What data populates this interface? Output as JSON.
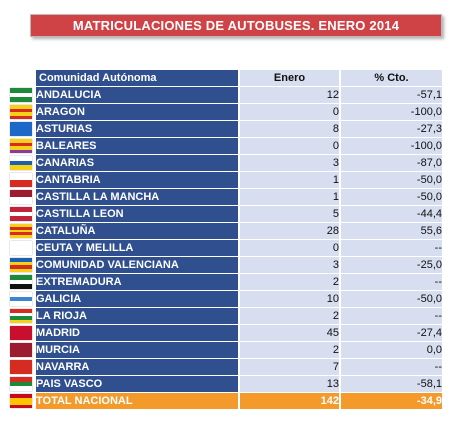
{
  "title": "MATRICULACIONES DE AUTOBUSES. ENERO 2014",
  "header": {
    "region": "Comunidad Autónoma",
    "count": "Enero",
    "change": "% Cto."
  },
  "rows": [
    {
      "name": "ANDALUCIA",
      "count": "12",
      "change": "-57,1",
      "flag": {
        "icon": "andalucia-flag-icon",
        "colors": [
          "#1d8a3a",
          "#ffffff",
          "#1d8a3a"
        ]
      }
    },
    {
      "name": "ARAGON",
      "count": "0",
      "change": "-100,0",
      "flag": {
        "icon": "aragon-flag-icon",
        "colors": [
          "#f7d117",
          "#d62b20",
          "#f7d117",
          "#d62b20"
        ]
      }
    },
    {
      "name": "ASTURIAS",
      "count": "8",
      "change": "-27,3",
      "flag": {
        "icon": "asturias-flag-icon",
        "colors": [
          "#1c68c8"
        ]
      }
    },
    {
      "name": "BALEARES",
      "count": "0",
      "change": "-100,0",
      "flag": {
        "icon": "baleares-flag-icon",
        "colors": [
          "#f7d117",
          "#d62b20",
          "#f7d117",
          "#8a3a9a"
        ]
      }
    },
    {
      "name": "CANARIAS",
      "count": "3",
      "change": "-87,0",
      "flag": {
        "icon": "canarias-flag-icon",
        "colors": [
          "#ffffff",
          "#1c5fb0",
          "#f7d117"
        ]
      }
    },
    {
      "name": "CANTABRIA",
      "count": "1",
      "change": "-50,0",
      "flag": {
        "icon": "cantabria-flag-icon",
        "colors": [
          "#ffffff",
          "#d62b20"
        ]
      }
    },
    {
      "name": "CASTILLA LA MANCHA",
      "count": "1",
      "change": "-50,0",
      "flag": {
        "icon": "castilla-la-mancha-flag-icon",
        "colors": [
          "#9b1c2e",
          "#ffffff"
        ]
      }
    },
    {
      "name": "CASTILLA LEON",
      "count": "5",
      "change": "-44,4",
      "flag": {
        "icon": "castilla-leon-flag-icon",
        "colors": [
          "#c0243a",
          "#ffffff",
          "#c0243a"
        ]
      }
    },
    {
      "name": "CATALUÑA",
      "count": "28",
      "change": "55,6",
      "flag": {
        "icon": "cataluna-flag-icon",
        "colors": [
          "#f7d117",
          "#d62b20",
          "#f7d117",
          "#d62b20",
          "#f7d117"
        ]
      }
    },
    {
      "name": "CEUTA Y MELILLA",
      "count": "0",
      "change": "--",
      "flag": {
        "icon": "ceuta-melilla-flag-icon",
        "colors": [
          "#ffffff"
        ]
      }
    },
    {
      "name": "COMUNIDAD VALENCIANA",
      "count": "3",
      "change": "-25,0",
      "flag": {
        "icon": "valencia-flag-icon",
        "colors": [
          "#1c5fb0",
          "#f7d117",
          "#d62b20",
          "#f7d117"
        ]
      }
    },
    {
      "name": "EXTREMADURA",
      "count": "2",
      "change": "--",
      "flag": {
        "icon": "extremadura-flag-icon",
        "colors": [
          "#1d8a3a",
          "#ffffff",
          "#111111"
        ]
      }
    },
    {
      "name": "GALICIA",
      "count": "10",
      "change": "-50,0",
      "flag": {
        "icon": "galicia-flag-icon",
        "colors": [
          "#ffffff",
          "#3a86d0",
          "#ffffff"
        ]
      }
    },
    {
      "name": "LA RIOJA",
      "count": "2",
      "change": "--",
      "flag": {
        "icon": "la-rioja-flag-icon",
        "colors": [
          "#d62b20",
          "#ffffff",
          "#1d8a3a",
          "#f7d117"
        ]
      }
    },
    {
      "name": "MADRID",
      "count": "45",
      "change": "-27,4",
      "flag": {
        "icon": "madrid-flag-icon",
        "colors": [
          "#c8102e"
        ]
      }
    },
    {
      "name": "MURCIA",
      "count": "2",
      "change": "0,0",
      "flag": {
        "icon": "murcia-flag-icon",
        "colors": [
          "#9b1c2e"
        ]
      }
    },
    {
      "name": "NAVARRA",
      "count": "7",
      "change": "--",
      "flag": {
        "icon": "navarra-flag-icon",
        "colors": [
          "#d62b20"
        ]
      }
    },
    {
      "name": "PAIS VASCO",
      "count": "13",
      "change": "-58,1",
      "flag": {
        "icon": "pais-vasco-flag-icon",
        "colors": [
          "#d62b20",
          "#1d8a3a",
          "#ffffff"
        ]
      }
    }
  ],
  "total": {
    "name": "TOTAL NACIONAL",
    "count": "142",
    "change": "-34,9",
    "flag": {
      "icon": "spain-flag-icon",
      "colors": [
        "#c60b1e",
        "#ffc400",
        "#ffc400",
        "#c60b1e"
      ]
    }
  }
}
